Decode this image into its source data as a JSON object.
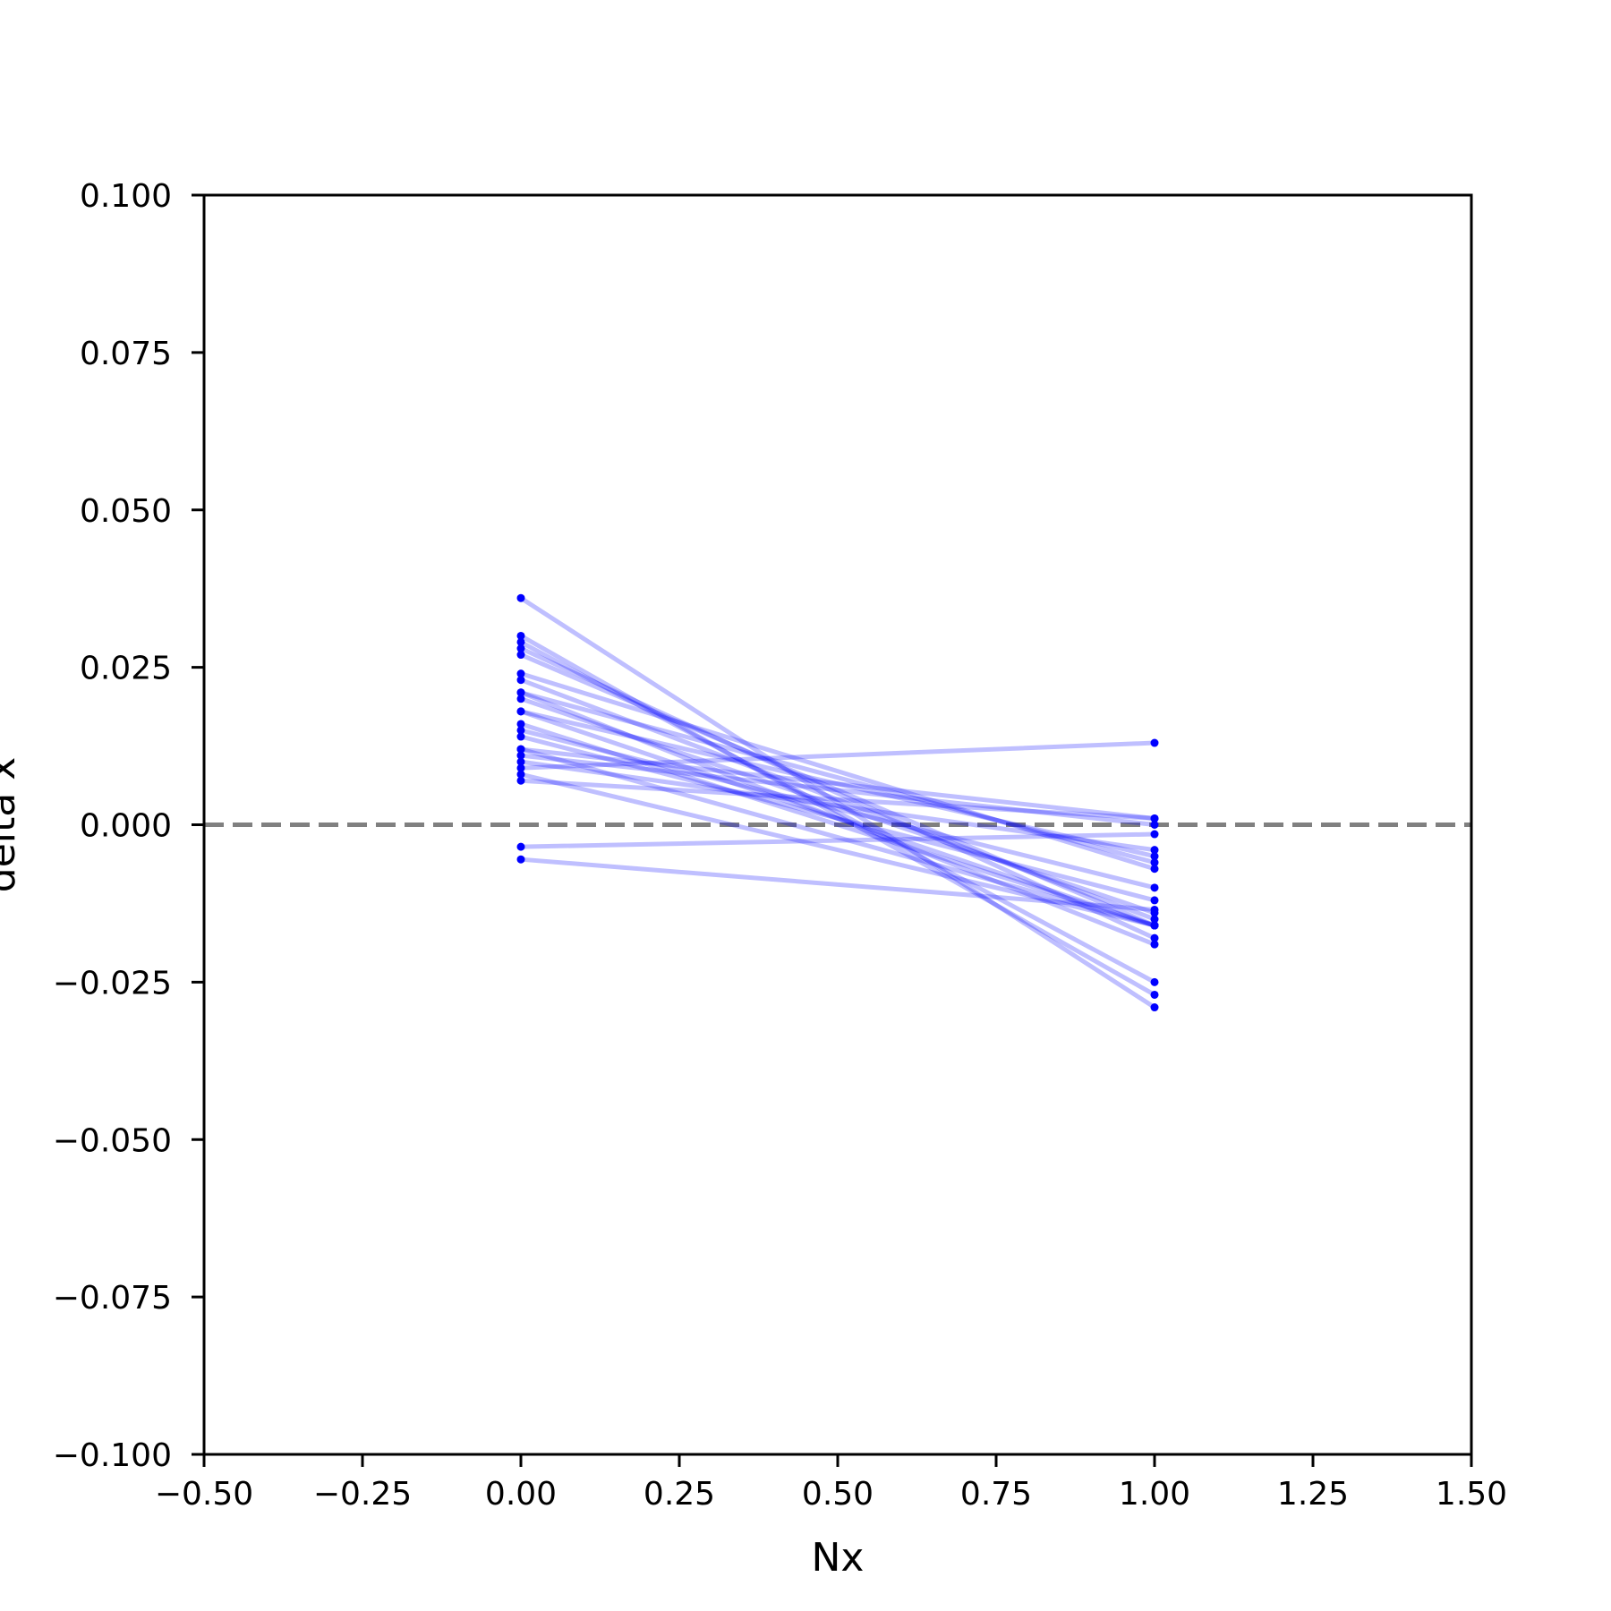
{
  "chart_data": {
    "type": "line",
    "title": "",
    "xlabel": "Nx",
    "ylabel": "delta x",
    "xlim": [
      -0.5,
      1.5
    ],
    "ylim": [
      -0.1,
      0.1
    ],
    "x_ticks": [
      "−0.50",
      "−0.25",
      "0.00",
      "0.25",
      "0.50",
      "0.75",
      "1.00",
      "1.25",
      "1.50"
    ],
    "y_ticks": [
      "−0.100",
      "−0.075",
      "−0.050",
      "−0.025",
      "0.000",
      "0.025",
      "0.050",
      "0.075",
      "0.100"
    ],
    "x_tick_values": [
      -0.5,
      -0.25,
      0,
      0.25,
      0.5,
      0.75,
      1.0,
      1.25,
      1.5
    ],
    "y_tick_values": [
      -0.1,
      -0.075,
      -0.05,
      -0.025,
      0,
      0.025,
      0.05,
      0.075,
      0.1
    ],
    "grid": false,
    "legend": "none",
    "reference_line": {
      "y": 0,
      "style": "dashed",
      "color": "#808080"
    },
    "line_color": "#0000ff",
    "line_opacity": 0.25,
    "marker_color": "#0000ff",
    "x": [
      0,
      1
    ],
    "series": [
      {
        "values": [
          0.036,
          -0.029
        ]
      },
      {
        "values": [
          0.03,
          -0.027
        ]
      },
      {
        "values": [
          0.029,
          -0.025
        ]
      },
      {
        "values": [
          0.028,
          -0.018
        ]
      },
      {
        "values": [
          0.027,
          -0.016
        ]
      },
      {
        "values": [
          0.024,
          -0.007
        ]
      },
      {
        "values": [
          0.023,
          -0.015
        ]
      },
      {
        "values": [
          0.021,
          -0.019
        ]
      },
      {
        "values": [
          0.021,
          -0.006
        ]
      },
      {
        "values": [
          0.02,
          -0.014
        ]
      },
      {
        "values": [
          0.018,
          -0.016
        ]
      },
      {
        "values": [
          0.018,
          -0.005
        ]
      },
      {
        "values": [
          0.016,
          -0.016
        ]
      },
      {
        "values": [
          0.015,
          -0.01
        ]
      },
      {
        "values": [
          0.014,
          -0.012
        ]
      },
      {
        "values": [
          0.012,
          0.001
        ]
      },
      {
        "values": [
          0.012,
          -0.016
        ]
      },
      {
        "values": [
          0.011,
          0.0
        ]
      },
      {
        "values": [
          0.01,
          -0.004
        ]
      },
      {
        "values": [
          0.009,
          0.013
        ]
      },
      {
        "values": [
          0.008,
          -0.016
        ]
      },
      {
        "values": [
          0.007,
          0.001
        ]
      },
      {
        "values": [
          -0.0035,
          -0.0015
        ]
      },
      {
        "values": [
          -0.0055,
          -0.0135
        ]
      }
    ]
  }
}
